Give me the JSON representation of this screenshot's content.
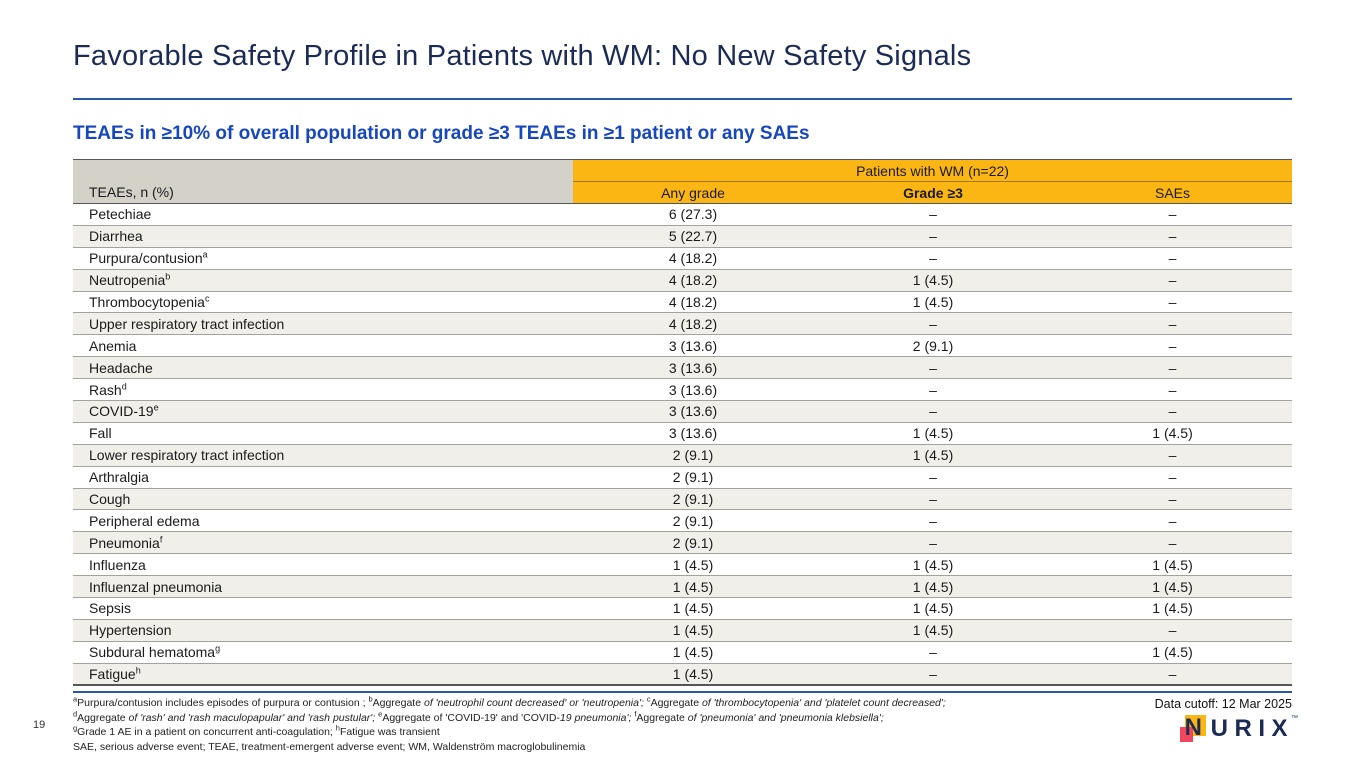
{
  "page": {
    "number": "19"
  },
  "header": {
    "title": "Favorable Safety Profile in Patients with WM: No New Safety Signals",
    "subtitle": "TEAEs in ≥10% of overall population or grade ≥3 TEAEs in ≥1 patient or any SAEs"
  },
  "table": {
    "row_header": "TEAEs, n (%)",
    "group_header": "Patients with WM (n=22)",
    "columns": [
      "Any grade",
      "Grade ≥3",
      "SAEs"
    ],
    "rows": [
      {
        "label": "Petechiae",
        "sup": "",
        "any_grade": "6 (27.3)",
        "grade3": "–",
        "saes": "–"
      },
      {
        "label": "Diarrhea",
        "sup": "",
        "any_grade": "5 (22.7)",
        "grade3": "–",
        "saes": "–"
      },
      {
        "label": "Purpura/contusion",
        "sup": "a",
        "any_grade": "4 (18.2)",
        "grade3": "–",
        "saes": "–"
      },
      {
        "label": "Neutropenia",
        "sup": "b",
        "any_grade": "4 (18.2)",
        "grade3": "1 (4.5)",
        "saes": "–"
      },
      {
        "label": "Thrombocytopenia",
        "sup": "c",
        "any_grade": "4 (18.2)",
        "grade3": "1 (4.5)",
        "saes": "–"
      },
      {
        "label": "Upper respiratory tract infection",
        "sup": "",
        "any_grade": "4 (18.2)",
        "grade3": "–",
        "saes": "–"
      },
      {
        "label": "Anemia",
        "sup": "",
        "any_grade": "3 (13.6)",
        "grade3": "2 (9.1)",
        "saes": "–"
      },
      {
        "label": "Headache",
        "sup": "",
        "any_grade": "3 (13.6)",
        "grade3": "–",
        "saes": "–"
      },
      {
        "label": "Rash",
        "sup": "d",
        "any_grade": "3 (13.6)",
        "grade3": "–",
        "saes": "–"
      },
      {
        "label": "COVID-19",
        "sup": "e",
        "any_grade": "3 (13.6)",
        "grade3": "–",
        "saes": "–"
      },
      {
        "label": "Fall",
        "sup": "",
        "any_grade": "3 (13.6)",
        "grade3": "1 (4.5)",
        "saes": "1 (4.5)"
      },
      {
        "label": "Lower respiratory tract infection",
        "sup": "",
        "any_grade": "2 (9.1)",
        "grade3": "1 (4.5)",
        "saes": "–"
      },
      {
        "label": "Arthralgia",
        "sup": "",
        "any_grade": "2 (9.1)",
        "grade3": "–",
        "saes": "–"
      },
      {
        "label": "Cough",
        "sup": "",
        "any_grade": "2 (9.1)",
        "grade3": "–",
        "saes": "–"
      },
      {
        "label": "Peripheral edema",
        "sup": "",
        "any_grade": "2 (9.1)",
        "grade3": "–",
        "saes": "–"
      },
      {
        "label": "Pneumonia",
        "sup": "f",
        "any_grade": "2 (9.1)",
        "grade3": "–",
        "saes": "–"
      },
      {
        "label": "Influenza",
        "sup": "",
        "any_grade": "1 (4.5)",
        "grade3": "1 (4.5)",
        "saes": "1 (4.5)"
      },
      {
        "label": "Influenzal pneumonia",
        "sup": "",
        "any_grade": "1 (4.5)",
        "grade3": "1 (4.5)",
        "saes": "1 (4.5)"
      },
      {
        "label": "Sepsis",
        "sup": "",
        "any_grade": "1 (4.5)",
        "grade3": "1 (4.5)",
        "saes": "1 (4.5)"
      },
      {
        "label": "Hypertension",
        "sup": "",
        "any_grade": "1 (4.5)",
        "grade3": "1 (4.5)",
        "saes": "–"
      },
      {
        "label": "Subdural hematoma",
        "sup": "g",
        "any_grade": "1 (4.5)",
        "grade3": "–",
        "saes": "1 (4.5)"
      },
      {
        "label": "Fatigue",
        "sup": "h",
        "any_grade": "1 (4.5)",
        "grade3": "–",
        "saes": "–"
      }
    ]
  },
  "footnotes": {
    "lines": [
      [
        {
          "sup": "a"
        },
        {
          "t": "Purpura/contusion includes episodes of purpura or contusion ; "
        },
        {
          "sup": "b"
        },
        {
          "t": "Aggregate "
        },
        {
          "t": "of 'neutrophil count decreased' or 'neutropenia'; ",
          "i": true
        },
        {
          "sup": "c"
        },
        {
          "t": "Aggregate "
        },
        {
          "t": "of 'thrombocytopenia' and 'platelet count decreased';",
          "i": true
        }
      ],
      [
        {
          "sup": "d"
        },
        {
          "t": "Aggregate "
        },
        {
          "t": "of 'rash' and 'rash maculopapular' and 'rash pustular'; ",
          "i": true
        },
        {
          "sup": "e"
        },
        {
          "t": "Aggregate of 'COVID-19' and 'COVID-"
        },
        {
          "t": "19 pneumonia'; ",
          "i": true
        },
        {
          "sup": "f"
        },
        {
          "t": "Aggregate "
        },
        {
          "t": "of 'pneumonia' and 'pneumonia klebsiella';",
          "i": true
        }
      ],
      [
        {
          "sup": "g"
        },
        {
          "t": "Grade 1 AE in a patient on concurrent anti-coagulation; "
        },
        {
          "sup": "h"
        },
        {
          "t": "Fatigue was transient"
        }
      ],
      [
        {
          "t": "SAE, serious adverse event; TEAE, treatment-emergent adverse event; WM, Waldenström macroglobulinemia"
        }
      ]
    ]
  },
  "footer": {
    "data_cutoff": "Data cutoff: 12 Mar 2025",
    "logo": {
      "n": "N",
      "rest": "URIX",
      "tm": "™"
    }
  },
  "colors": {
    "accent_orange": "#FCB614",
    "header_gray": "#D4D1C9",
    "row_alt": "#F0EFEA",
    "title_navy": "#1B2B55",
    "subtitle_blue": "#1747BD",
    "rule_blue": "#2A57AC",
    "logo_pink": "#F2465F"
  }
}
